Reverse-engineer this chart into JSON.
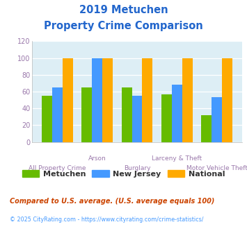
{
  "title_line1": "2019 Metuchen",
  "title_line2": "Property Crime Comparison",
  "categories": [
    "All Property Crime",
    "Arson",
    "Burglary",
    "Larceny & Theft",
    "Motor Vehicle Theft"
  ],
  "metuchen": [
    55,
    65,
    65,
    57,
    32
  ],
  "new_jersey": [
    65,
    100,
    55,
    68,
    53
  ],
  "national": [
    100,
    100,
    100,
    100,
    100
  ],
  "bar_colors": {
    "metuchen": "#66bb00",
    "new_jersey": "#4499ff",
    "national": "#ffaa00"
  },
  "ylim": [
    0,
    120
  ],
  "yticks": [
    0,
    20,
    40,
    60,
    80,
    100,
    120
  ],
  "title_color": "#2266cc",
  "xlabel_color": "#9977aa",
  "ytick_color": "#9977aa",
  "legend_labels": [
    "Metuchen",
    "New Jersey",
    "National"
  ],
  "footnote1": "Compared to U.S. average. (U.S. average equals 100)",
  "footnote2": "© 2025 CityRating.com - https://www.cityrating.com/crime-statistics/",
  "footnote1_color": "#cc4400",
  "footnote2_color": "#4499ff",
  "bg_color": "#ddeef5",
  "fig_bg_color": "#ffffff",
  "grid_color": "#ffffff",
  "top_labels": [
    "",
    "Arson",
    "",
    "Larceny & Theft",
    ""
  ],
  "bottom_labels": [
    "All Property Crime",
    "",
    "Burglary",
    "",
    "Motor Vehicle Theft"
  ]
}
